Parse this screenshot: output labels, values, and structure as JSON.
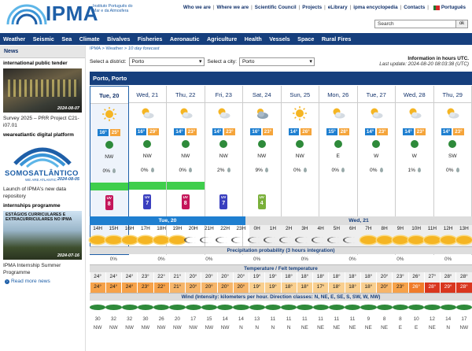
{
  "header": {
    "logo_text": "IPMA",
    "logo_sub": "Instituto Português do Mar e da Atmosfera",
    "links": [
      "Who we are",
      "Where we are",
      "Scientific Council",
      "Projects",
      "eLibrary",
      "ipma encyclopedia",
      "Contacts",
      "Português"
    ],
    "search_value": "Search",
    "ok_label": "ok"
  },
  "nav": [
    "Weather",
    "Seismic",
    "Sea",
    "Climate",
    "Bivalves",
    "Fisheries",
    "Aeronautic",
    "Agriculture",
    "Health",
    "Vessels",
    "Space",
    "Rural Fires"
  ],
  "sidebar": {
    "title": "News",
    "items": [
      {
        "heading": "international public tender",
        "date": "2024-08-07",
        "caption": "Survey 2025 – PRR Project C21-i07.01"
      },
      {
        "heading": "weareatlantic digital platform",
        "date": "2024-08-05",
        "logo_text": "SOMOSATLÂNTICO",
        "logo_sub": "WE ARE ATLANTIC",
        "caption": "Launch of IPMA's new data repository"
      },
      {
        "heading": "internships programme",
        "date": "2024-07-16",
        "overlay": "ESTÁGIOS CURRICULARES E EXTRACURRICULARES NO IPMA",
        "caption": "IPMA Internship Summer Programme"
      }
    ],
    "read_more": "Read more news"
  },
  "main": {
    "breadcrumb": [
      "IPMA",
      "Weather",
      "10 day forecast"
    ],
    "district_label": "Select a district:",
    "district_value": "Porto",
    "city_label": "Select a city:",
    "city_value": "Porto",
    "info_title": "Information in hours UTC.",
    "info_update": "Last update: 2024-08-20 08:03:38 (UTC)",
    "location": "Porto, Porto"
  },
  "days": [
    {
      "name": "Tue, 20",
      "tmin": "16°",
      "tmax": "25°",
      "wind": "NW",
      "prec": "0%",
      "icon": "sun-icon",
      "uv": "8"
    },
    {
      "name": "Wed, 21",
      "tmin": "16°",
      "tmax": "29°",
      "wind": "NW",
      "prec": "0%",
      "icon": "partly-cloudy-icon",
      "uv": "7"
    },
    {
      "name": "Thu, 22",
      "tmin": "14°",
      "tmax": "23°",
      "wind": "NW",
      "prec": "0%",
      "icon": "partly-cloudy-icon",
      "uv": "8"
    },
    {
      "name": "Fri, 23",
      "tmin": "14°",
      "tmax": "23°",
      "wind": "NW",
      "prec": "2%",
      "icon": "partly-cloudy-icon",
      "uv": "7"
    },
    {
      "name": "Sat, 24",
      "tmin": "16°",
      "tmax": "23°",
      "wind": "NW",
      "prec": "9%",
      "icon": "cloudy-icon",
      "uv": "4"
    },
    {
      "name": "Sun, 25",
      "tmin": "14°",
      "tmax": "26°",
      "wind": "NW",
      "prec": "0%",
      "icon": "sun-icon",
      "uv": ""
    },
    {
      "name": "Mon, 26",
      "tmin": "15°",
      "tmax": "28°",
      "wind": "E",
      "prec": "0%",
      "icon": "partly-cloudy-icon",
      "uv": ""
    },
    {
      "name": "Tue, 27",
      "tmin": "14°",
      "tmax": "23°",
      "wind": "W",
      "prec": "0%",
      "icon": "partly-cloudy-icon",
      "uv": ""
    },
    {
      "name": "Wed, 28",
      "tmin": "14°",
      "tmax": "23°",
      "wind": "W",
      "prec": "1%",
      "icon": "partly-cloudy-icon",
      "uv": ""
    },
    {
      "name": "Thu, 29",
      "tmin": "14°",
      "tmax": "23°",
      "wind": "SW",
      "prec": "0%",
      "icon": "partly-cloudy-icon",
      "uv": ""
    }
  ],
  "hourly": {
    "day1_label": "Tue, 20",
    "day2_label": "Wed, 21",
    "hours": [
      "14H",
      "15H",
      "16H",
      "17H",
      "18H",
      "19H",
      "20H",
      "21H",
      "22H",
      "23H",
      "0H",
      "1H",
      "2H",
      "3H",
      "4H",
      "5H",
      "6H",
      "7H",
      "8H",
      "9H",
      "10H",
      "11H",
      "12H",
      "13H"
    ],
    "precip_title": "Precipitation probability (3 hours integration)",
    "precip": [
      "",
      "0%",
      "",
      "",
      "0%",
      "",
      "",
      "0%",
      "",
      "",
      "0%",
      "",
      "",
      "0%",
      "",
      "",
      "0%",
      "",
      "",
      "0%",
      "",
      "",
      "0%",
      ""
    ],
    "temp_title": "Temperature / Felt temperature",
    "temp": [
      "24°",
      "24°",
      "24°",
      "23°",
      "22°",
      "21°",
      "20°",
      "20°",
      "20°",
      "20°",
      "19°",
      "19°",
      "18°",
      "18°",
      "18°",
      "18°",
      "18°",
      "18°",
      "20°",
      "23°",
      "26°",
      "27°",
      "28°",
      "28°"
    ],
    "felt": [
      "24°",
      "24°",
      "24°",
      "23°",
      "22°",
      "21°",
      "20°",
      "20°",
      "20°",
      "20°",
      "19°",
      "19°",
      "18°",
      "18°",
      "17°",
      "18°",
      "18°",
      "18°",
      "20°",
      "23°",
      "26°",
      "28°",
      "29°",
      "28°"
    ],
    "wind_title": "Wind (Intensity: kilometers per hour. Direction classes: N, NE, E, SE, S, SW, W, NW)",
    "wind_speed": [
      "30",
      "32",
      "32",
      "30",
      "26",
      "20",
      "17",
      "15",
      "14",
      "14",
      "13",
      "11",
      "11",
      "11",
      "11",
      "11",
      "11",
      "9",
      "8",
      "8",
      "10",
      "12",
      "14",
      "17"
    ],
    "wind_dir": [
      "NW",
      "NW",
      "NW",
      "NW",
      "NW",
      "NW",
      "NW",
      "NW",
      "NW",
      "N",
      "N",
      "N",
      "N",
      "NE",
      "NE",
      "NE",
      "NE",
      "NE",
      "NE",
      "E",
      "E",
      "NE",
      "N",
      "NW"
    ]
  }
}
